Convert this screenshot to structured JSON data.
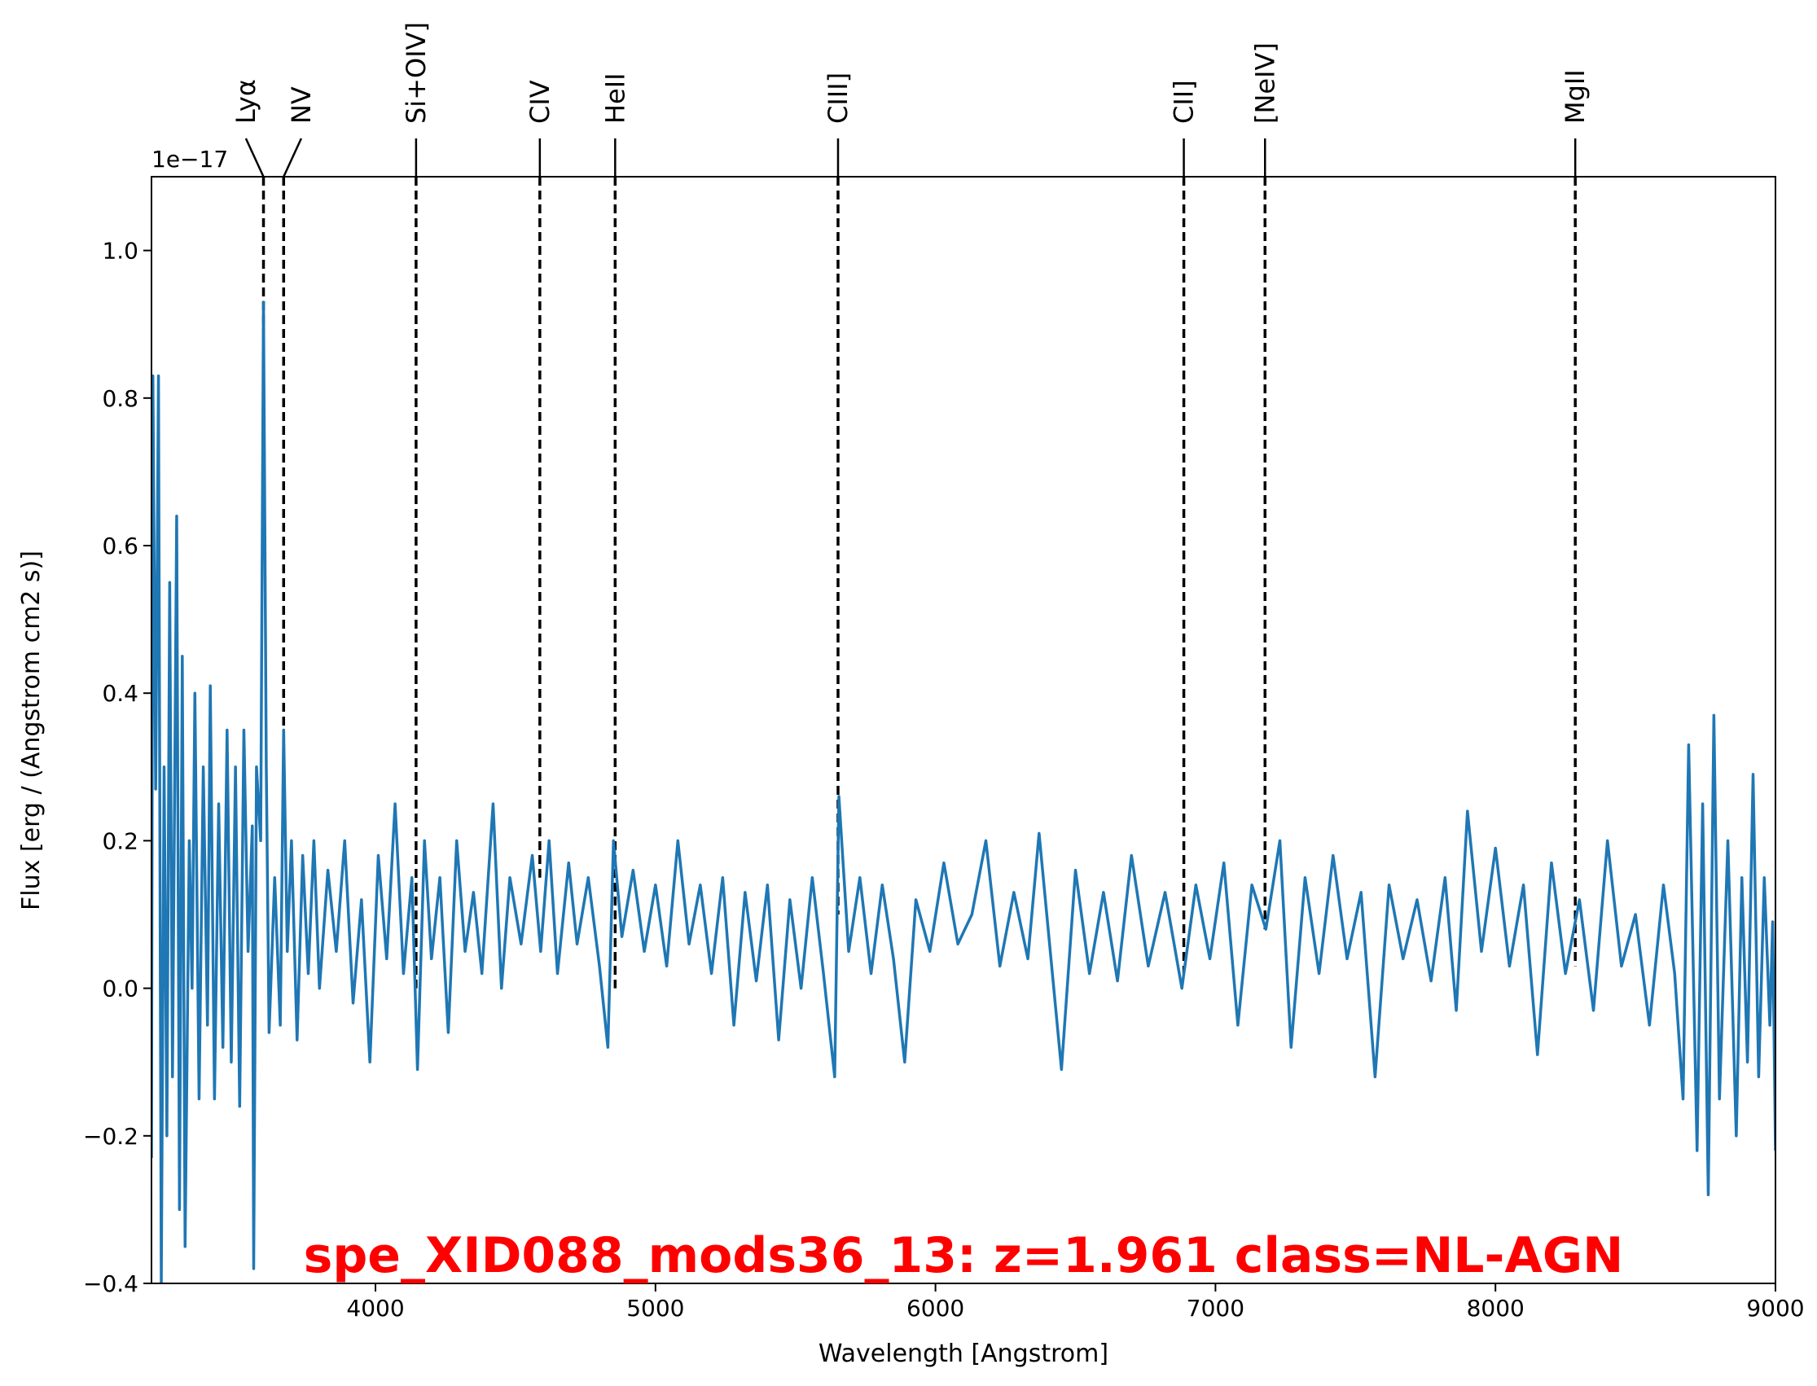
{
  "chart_data": {
    "type": "line",
    "title": "spe_XID088_mods36_13: z=1.961 class=NL-AGN",
    "title_color": "#ff0000",
    "x_label": "Wavelength [Angstrom]",
    "y_label": "Flux [erg / (Angstrom cm2 s)]",
    "y_offset_label": "1e−17",
    "xlim": [
      3200,
      9000
    ],
    "ylim": [
      -0.4,
      1.1
    ],
    "xticks": [
      4000,
      5000,
      6000,
      7000,
      8000,
      9000
    ],
    "yticks": [
      {
        "value": -0.4,
        "label": "−0.4"
      },
      {
        "value": -0.2,
        "label": "−0.2"
      },
      {
        "value": 0,
        "label": "0.0"
      },
      0.2,
      0.4,
      0.6,
      0.8,
      {
        "value": 1,
        "label": "1.0"
      }
    ],
    "x": [
      3200,
      3205,
      3215,
      3225,
      3235,
      3245,
      3255,
      3265,
      3275,
      3290,
      3300,
      3310,
      3320,
      3335,
      3345,
      3355,
      3370,
      3385,
      3400,
      3410,
      3425,
      3440,
      3455,
      3470,
      3485,
      3500,
      3515,
      3530,
      3545,
      3560,
      3565,
      3575,
      3590,
      3600,
      3610,
      3620,
      3640,
      3660,
      3672,
      3685,
      3700,
      3720,
      3740,
      3760,
      3780,
      3800,
      3830,
      3860,
      3890,
      3920,
      3950,
      3980,
      4010,
      4040,
      4070,
      4100,
      4130,
      4150,
      4175,
      4200,
      4230,
      4260,
      4290,
      4320,
      4350,
      4380,
      4420,
      4450,
      4480,
      4520,
      4560,
      4590,
      4620,
      4650,
      4690,
      4720,
      4760,
      4800,
      4830,
      4850,
      4880,
      4920,
      4960,
      5000,
      5040,
      5080,
      5120,
      5160,
      5200,
      5240,
      5280,
      5320,
      5360,
      5400,
      5440,
      5480,
      5520,
      5560,
      5600,
      5640,
      5655,
      5690,
      5730,
      5770,
      5810,
      5850,
      5890,
      5930,
      5980,
      6030,
      6080,
      6130,
      6180,
      6230,
      6280,
      6330,
      6370,
      6410,
      6450,
      6500,
      6550,
      6600,
      6650,
      6700,
      6760,
      6820,
      6880,
      6930,
      6980,
      7030,
      7080,
      7130,
      7180,
      7230,
      7270,
      7320,
      7370,
      7420,
      7470,
      7520,
      7570,
      7620,
      7670,
      7720,
      7770,
      7820,
      7860,
      7900,
      7950,
      8000,
      8050,
      8100,
      8150,
      8200,
      8250,
      8300,
      8350,
      8400,
      8450,
      8500,
      8550,
      8600,
      8640,
      8670,
      8690,
      8720,
      8740,
      8760,
      8780,
      8800,
      8830,
      8860,
      8880,
      8900,
      8920,
      8940,
      8960,
      8980,
      8990,
      9000
    ],
    "series": [
      {
        "color": "#1f77b4",
        "values": [
          -0.23,
          0.83,
          0.27,
          0.83,
          -0.4,
          0.3,
          -0.2,
          0.55,
          -0.12,
          0.64,
          -0.3,
          0.45,
          -0.35,
          0.2,
          0.0,
          0.4,
          -0.15,
          0.3,
          -0.05,
          0.41,
          -0.15,
          0.25,
          -0.08,
          0.35,
          -0.1,
          0.3,
          -0.16,
          0.35,
          0.05,
          0.22,
          -0.38,
          0.3,
          0.2,
          0.93,
          0.3,
          -0.06,
          0.15,
          -0.05,
          0.35,
          0.05,
          0.2,
          -0.07,
          0.18,
          0.02,
          0.2,
          0.0,
          0.16,
          0.05,
          0.2,
          -0.02,
          0.12,
          -0.1,
          0.18,
          0.04,
          0.25,
          0.02,
          0.15,
          -0.11,
          0.2,
          0.04,
          0.15,
          -0.06,
          0.2,
          0.05,
          0.13,
          0.02,
          0.25,
          0.0,
          0.15,
          0.06,
          0.18,
          0.05,
          0.2,
          0.02,
          0.17,
          0.06,
          0.15,
          0.03,
          -0.08,
          0.2,
          0.07,
          0.16,
          0.05,
          0.14,
          0.03,
          0.2,
          0.06,
          0.14,
          0.02,
          0.15,
          -0.05,
          0.13,
          0.01,
          0.14,
          -0.07,
          0.12,
          0.0,
          0.15,
          0.02,
          -0.12,
          0.26,
          0.05,
          0.15,
          0.02,
          0.14,
          0.04,
          -0.1,
          0.12,
          0.05,
          0.17,
          0.06,
          0.1,
          0.2,
          0.03,
          0.13,
          0.04,
          0.21,
          0.05,
          -0.11,
          0.16,
          0.02,
          0.13,
          0.01,
          0.18,
          0.03,
          0.13,
          0.0,
          0.14,
          0.04,
          0.17,
          -0.05,
          0.14,
          0.08,
          0.2,
          -0.08,
          0.15,
          0.02,
          0.18,
          0.04,
          0.13,
          -0.12,
          0.14,
          0.04,
          0.12,
          0.01,
          0.15,
          -0.03,
          0.24,
          0.05,
          0.19,
          0.03,
          0.14,
          -0.09,
          0.17,
          0.02,
          0.12,
          -0.03,
          0.2,
          0.03,
          0.1,
          -0.05,
          0.14,
          0.02,
          -0.15,
          0.33,
          -0.22,
          0.25,
          -0.28,
          0.37,
          -0.15,
          0.2,
          -0.2,
          0.15,
          -0.1,
          0.29,
          -0.12,
          0.15,
          -0.05,
          0.09,
          -0.22
        ]
      }
    ],
    "lines": [
      {
        "name": "Lyα",
        "x": 3600,
        "ymin": 0.75
      },
      {
        "name": "NV",
        "x": 3672,
        "ymin": 0.3
      },
      {
        "name": "Si+OIV]",
        "x": 4145,
        "ymin": 0.0
      },
      {
        "name": "CIV",
        "x": 4587,
        "ymin": 0.15
      },
      {
        "name": "HeII",
        "x": 4856,
        "ymin": 0.0
      },
      {
        "name": "CIII]",
        "x": 5652,
        "ymin": 0.1
      },
      {
        "name": "CII]",
        "x": 6887,
        "ymin": 0.02
      },
      {
        "name": "[NeIV]",
        "x": 7177,
        "ymin": 0.08
      },
      {
        "name": "MgII",
        "x": 8285,
        "ymin": 0.03
      }
    ]
  }
}
